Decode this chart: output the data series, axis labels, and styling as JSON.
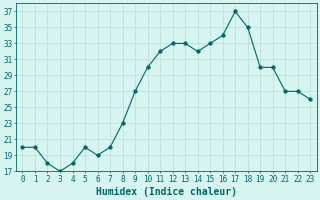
{
  "x": [
    0,
    1,
    2,
    3,
    4,
    5,
    6,
    7,
    8,
    9,
    10,
    11,
    12,
    13,
    14,
    15,
    16,
    17,
    18,
    19,
    20,
    21,
    22,
    23
  ],
  "y": [
    20,
    20,
    18,
    17,
    18,
    20,
    19,
    20,
    23,
    27,
    30,
    32,
    33,
    33,
    32,
    33,
    34,
    37,
    35,
    30,
    30,
    27,
    27,
    26
  ],
  "xlabel": "Humidex (Indice chaleur)",
  "ylim": [
    17,
    38
  ],
  "yticks": [
    17,
    19,
    21,
    23,
    25,
    27,
    29,
    31,
    33,
    35,
    37
  ],
  "xlim": [
    -0.5,
    23.5
  ],
  "xticks": [
    0,
    1,
    2,
    3,
    4,
    5,
    6,
    7,
    8,
    9,
    10,
    11,
    12,
    13,
    14,
    15,
    16,
    17,
    18,
    19,
    20,
    21,
    22,
    23
  ],
  "line_color": "#006666",
  "marker_size": 2.5,
  "bg_color": "#d6f5f0",
  "grid_color": "#b8ddd8",
  "tick_label_fontsize": 5.5,
  "xlabel_fontsize": 7.0,
  "linewidth": 0.8
}
